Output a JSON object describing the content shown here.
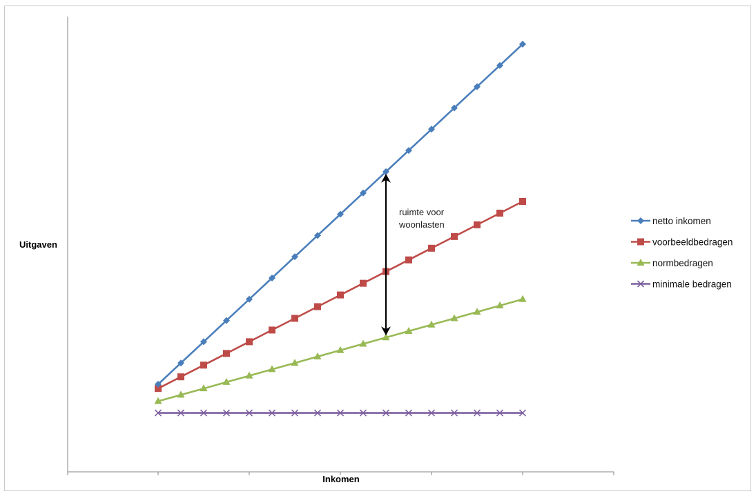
{
  "chart_data": {
    "type": "line",
    "title": "",
    "xlabel": "Inkomen",
    "ylabel": "Uitgaven",
    "x": [
      1,
      2,
      3,
      4,
      5,
      6,
      7,
      8,
      9,
      10,
      11,
      12,
      13,
      14,
      15,
      16,
      17
    ],
    "ylim": [
      0,
      195
    ],
    "grid": false,
    "legend_position": "right",
    "annotation": {
      "text_lines": [
        "ruimte voor",
        "woonlasten"
      ],
      "at_x": 11,
      "from_series": "netto inkomen",
      "to_series": "normbedragen"
    },
    "series": [
      {
        "name": "netto inkomen",
        "color": "#4a7ebb",
        "marker": "diamond",
        "values": [
          40,
          50,
          60,
          70,
          80,
          90,
          100,
          110,
          120,
          130,
          140,
          150,
          160,
          170,
          180,
          190,
          200
        ]
      },
      {
        "name": "voorbeeldbedragen",
        "color": "#be4b48",
        "marker": "square",
        "values": [
          38,
          43.5,
          49,
          54.5,
          60,
          65.5,
          71,
          76.5,
          82,
          87.5,
          93,
          98.5,
          104,
          109.5,
          115,
          120.5,
          126
        ]
      },
      {
        "name": "normbedragen",
        "color": "#98b954",
        "marker": "triangle",
        "values": [
          32,
          35,
          38,
          41,
          44,
          47,
          50,
          53,
          56,
          59,
          62,
          65,
          68,
          71,
          74,
          77,
          80
        ]
      },
      {
        "name": "minimale bedragen",
        "color": "#7d60a0",
        "marker": "x",
        "values": [
          26.5,
          26.5,
          26.5,
          26.5,
          26.5,
          26.5,
          26.5,
          26.5,
          26.5,
          26.5,
          26.5,
          26.5,
          26.5,
          26.5,
          26.5,
          26.5,
          26.5
        ]
      }
    ]
  }
}
